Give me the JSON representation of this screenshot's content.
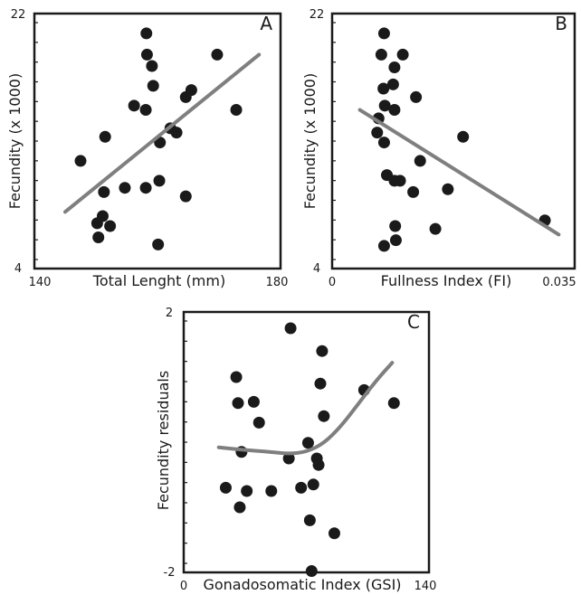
{
  "chart_data": [
    {
      "type": "scatter",
      "panel_label": "A",
      "xlabel": "Total Lenght (mm)",
      "ylabel": "Fecundity (x 1000)",
      "xlim": [
        140,
        180
      ],
      "ylim": [
        4,
        22
      ],
      "x_ticks": [
        "140",
        "180"
      ],
      "y_ticks": [
        "4",
        "22"
      ],
      "points": [
        [
          147.5,
          11.6
        ],
        [
          150.2,
          7.2
        ],
        [
          150.4,
          6.2
        ],
        [
          151.1,
          7.7
        ],
        [
          151.3,
          9.4
        ],
        [
          151.5,
          13.3
        ],
        [
          152.3,
          7.0
        ],
        [
          154.7,
          9.7
        ],
        [
          156.2,
          15.5
        ],
        [
          158.1,
          15.2
        ],
        [
          158.1,
          9.7
        ],
        [
          158.2,
          20.6
        ],
        [
          158.3,
          19.1
        ],
        [
          159.1,
          18.3
        ],
        [
          159.3,
          16.9
        ],
        [
          160.4,
          12.9
        ],
        [
          160.3,
          10.2
        ],
        [
          160.1,
          5.7
        ],
        [
          162.1,
          13.9
        ],
        [
          163.1,
          13.6
        ],
        [
          164.6,
          16.1
        ],
        [
          164.6,
          9.1
        ],
        [
          165.5,
          16.6
        ],
        [
          169.7,
          19.1
        ],
        [
          172.8,
          15.2
        ]
      ],
      "fit_line": [
        [
          145,
          8.0
        ],
        [
          176.5,
          19.1
        ]
      ],
      "grid": false
    },
    {
      "type": "scatter",
      "panel_label": "B",
      "xlabel": "Fullness Index (FI)",
      "ylabel": "Fecundity (x 1000)",
      "xlim": [
        0,
        0.035
      ],
      "ylim": [
        4,
        22
      ],
      "x_ticks": [
        "0",
        "0.035"
      ],
      "y_ticks": [
        "4",
        "22"
      ],
      "points": [
        [
          0.0065,
          13.6
        ],
        [
          0.0067,
          14.6
        ],
        [
          0.0071,
          19.1
        ],
        [
          0.0074,
          16.7
        ],
        [
          0.0075,
          5.6
        ],
        [
          0.0075,
          20.6
        ],
        [
          0.0075,
          12.9
        ],
        [
          0.0076,
          15.5
        ],
        [
          0.0079,
          10.6
        ],
        [
          0.0088,
          17.0
        ],
        [
          0.009,
          15.2
        ],
        [
          0.009,
          18.2
        ],
        [
          0.009,
          10.2
        ],
        [
          0.0091,
          7.0
        ],
        [
          0.0092,
          6.0
        ],
        [
          0.0098,
          10.2
        ],
        [
          0.0102,
          19.1
        ],
        [
          0.0117,
          9.4
        ],
        [
          0.0121,
          16.1
        ],
        [
          0.0127,
          11.6
        ],
        [
          0.0149,
          6.8
        ],
        [
          0.0167,
          9.6
        ],
        [
          0.0189,
          13.3
        ],
        [
          0.0307,
          7.4
        ]
      ],
      "fit_line": [
        [
          0.004,
          15.2
        ],
        [
          0.0327,
          6.4
        ]
      ],
      "grid": false
    },
    {
      "type": "scatter",
      "panel_label": "C",
      "xlabel": "Gonadosomatic Index (GSI)",
      "ylabel": "Fecundity residuals",
      "xlim": [
        0,
        140
      ],
      "ylim": [
        -2,
        2
      ],
      "x_ticks": [
        "0",
        "140"
      ],
      "y_ticks": [
        "-2",
        "2"
      ],
      "points": [
        [
          24,
          -0.7
        ],
        [
          30,
          1.0
        ],
        [
          31,
          0.6
        ],
        [
          32,
          -1.0
        ],
        [
          33,
          -0.15
        ],
        [
          36,
          -0.75
        ],
        [
          40,
          0.62
        ],
        [
          43,
          0.3
        ],
        [
          50,
          -0.75
        ],
        [
          60,
          -0.25
        ],
        [
          61,
          1.75
        ],
        [
          67,
          -0.7
        ],
        [
          71,
          -0.01
        ],
        [
          72,
          -1.2
        ],
        [
          73,
          -1.98
        ],
        [
          74,
          -0.65
        ],
        [
          76,
          -0.25
        ],
        [
          77,
          -0.35
        ],
        [
          78,
          0.9
        ],
        [
          79,
          1.4
        ],
        [
          80,
          0.4
        ],
        [
          86,
          -1.4
        ],
        [
          103,
          0.8
        ],
        [
          120,
          0.6
        ]
      ],
      "fit_line": [
        [
          20,
          -0.08
        ],
        [
          35,
          -0.12
        ],
        [
          50,
          -0.15
        ],
        [
          60,
          -0.18
        ],
        [
          70,
          -0.15
        ],
        [
          80,
          -0.02
        ],
        [
          90,
          0.25
        ],
        [
          100,
          0.6
        ],
        [
          110,
          0.95
        ],
        [
          119,
          1.22
        ]
      ],
      "grid": false
    }
  ]
}
